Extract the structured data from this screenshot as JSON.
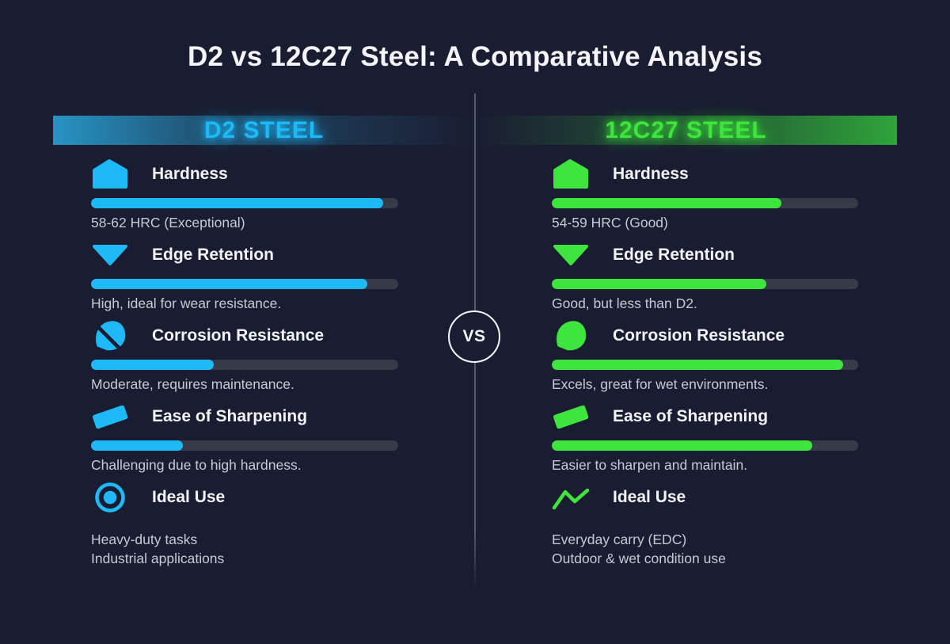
{
  "page": {
    "title": "D2 vs 12C27 Steel: A Comparative Analysis",
    "background_color": "#1a1d31",
    "vs_label": "VS",
    "bar_track_color": "#373b47"
  },
  "columns": [
    {
      "name": "D2 Steel",
      "header_label": "D2 STEEL",
      "accent_color": "#1eb9f7",
      "sections": [
        {
          "icon": "pentagon-gem-icon",
          "title": "Hardness",
          "bar_percent": 95,
          "description_lines": [
            "58-62 HRC (Exceptional)"
          ]
        },
        {
          "icon": "triangle-down-icon",
          "title": "Edge Retention",
          "bar_percent": 90,
          "description_lines": [
            "High, ideal for wear resistance."
          ]
        },
        {
          "icon": "droplet-slash-icon",
          "title": "Corrosion Resistance",
          "bar_percent": 40,
          "description_lines": [
            "Moderate, requires maintenance."
          ]
        },
        {
          "icon": "whetstone-icon",
          "title": "Ease of Sharpening",
          "bar_percent": 30,
          "description_lines": [
            "Challenging due to high hardness."
          ]
        },
        {
          "icon": "target-icon",
          "title": "Ideal Use",
          "bar_percent": null,
          "description_lines": [
            "Heavy-duty tasks",
            "Industrial applications"
          ]
        }
      ]
    },
    {
      "name": "12C27 Steel",
      "header_label": "12C27 STEEL",
      "accent_color": "#3de53c",
      "sections": [
        {
          "icon": "pentagon-gem-icon",
          "title": "Hardness",
          "bar_percent": 75,
          "description_lines": [
            "54-59 HRC (Good)"
          ]
        },
        {
          "icon": "triangle-down-icon",
          "title": "Edge Retention",
          "bar_percent": 70,
          "description_lines": [
            "Good, but less than D2."
          ]
        },
        {
          "icon": "droplet-icon",
          "title": "Corrosion Resistance",
          "bar_percent": 95,
          "description_lines": [
            "Excels, great for wet environments."
          ]
        },
        {
          "icon": "whetstone-icon",
          "title": "Ease of Sharpening",
          "bar_percent": 85,
          "description_lines": [
            "Easier to sharpen and maintain."
          ]
        },
        {
          "icon": "zigzag-line-icon",
          "title": "Ideal Use",
          "bar_percent": null,
          "description_lines": [
            "Everyday carry (EDC)",
            "Outdoor & wet condition use"
          ]
        }
      ]
    }
  ]
}
